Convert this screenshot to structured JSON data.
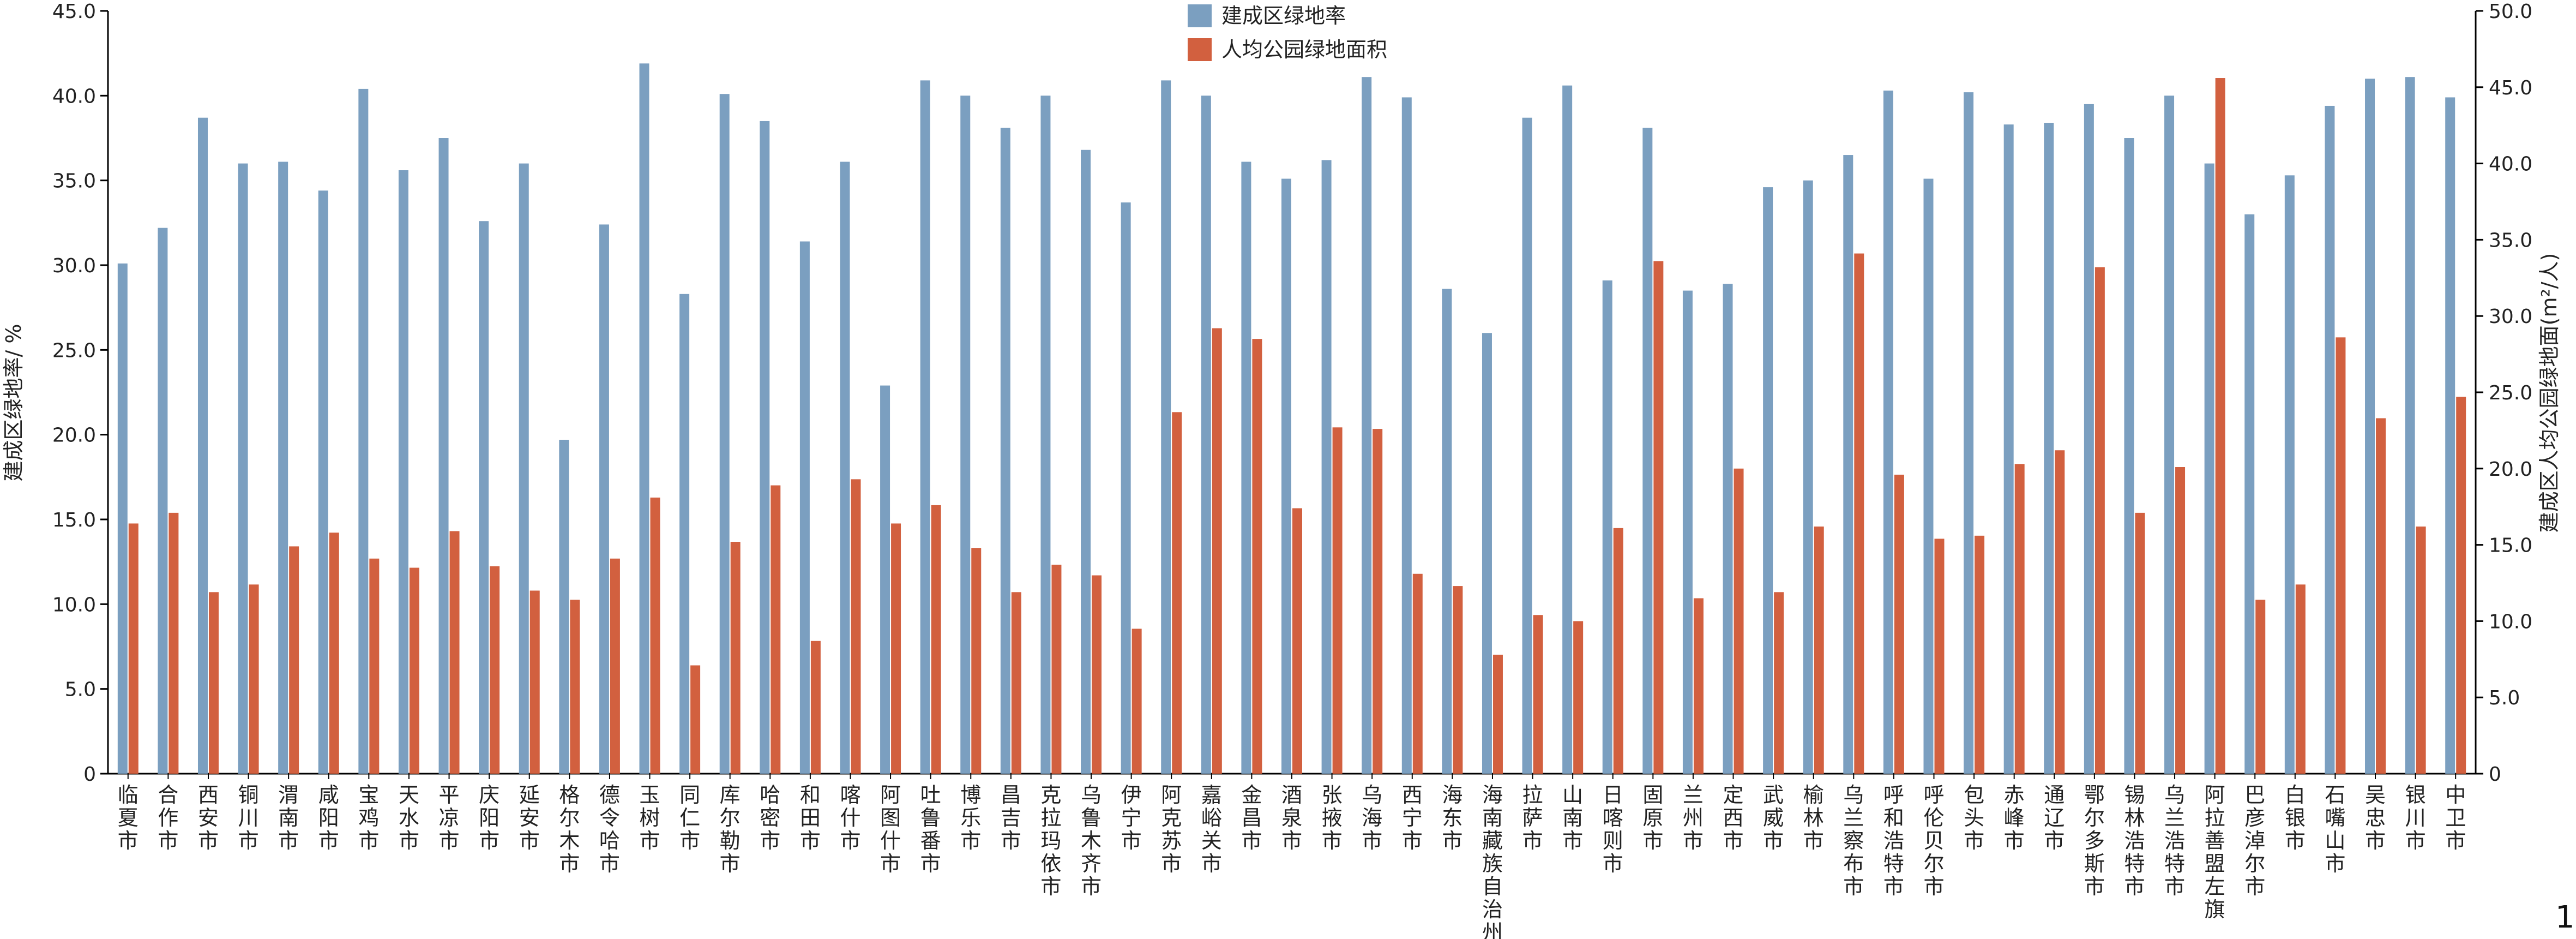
{
  "page_number": "1",
  "chart_data": {
    "type": "bar",
    "categories": [
      "临夏市",
      "合作市",
      "西安市",
      "铜川市",
      "渭南市",
      "咸阳市",
      "宝鸡市",
      "天水市",
      "平凉市",
      "庆阳市",
      "延安市",
      "格尔木市",
      "德令哈市",
      "玉树市",
      "同仁市",
      "库尔勒市",
      "哈密市",
      "和田市",
      "喀什市",
      "阿图什市",
      "吐鲁番市",
      "博乐市",
      "昌吉市",
      "克拉玛依市",
      "乌鲁木齐市",
      "伊宁市",
      "阿克苏市",
      "嘉峪关市",
      "金昌市",
      "酒泉市",
      "张掖市",
      "乌海市",
      "西宁市",
      "海东市",
      "海南藏族自治州",
      "拉萨市",
      "山南市",
      "日喀则市",
      "固原市",
      "兰州市",
      "定西市",
      "武威市",
      "榆林市",
      "乌兰察布市",
      "呼和浩特市",
      "呼伦贝尔市",
      "包头市",
      "赤峰市",
      "通辽市",
      "鄂尔多斯市",
      "锡林浩特市",
      "乌兰浩特市",
      "阿拉善盟左旗",
      "巴彦淖尔市",
      "白银市",
      "石嘴山市",
      "吴忠市",
      "银川市",
      "中卫市"
    ],
    "series": [
      {
        "name": "建成区绿地率",
        "axis": "left",
        "color": "#7b9fc0",
        "values": [
          30.1,
          32.2,
          38.7,
          36.0,
          36.1,
          34.4,
          40.4,
          35.6,
          37.5,
          32.6,
          36.0,
          19.7,
          32.4,
          41.9,
          28.3,
          40.1,
          38.5,
          31.4,
          36.1,
          22.9,
          40.9,
          40.0,
          38.1,
          40.0,
          36.8,
          33.7,
          40.9,
          40.0,
          36.1,
          35.1,
          36.2,
          41.1,
          39.9,
          28.6,
          26.0,
          38.7,
          40.6,
          29.1,
          38.1,
          28.5,
          28.9,
          34.6,
          35.0,
          36.5,
          40.3,
          35.1,
          40.2,
          38.3,
          38.4,
          39.5,
          37.5,
          40.0,
          36.0,
          33.0,
          35.3,
          39.4,
          41.0,
          41.1,
          39.9
        ]
      },
      {
        "name": "人均公园绿地面积",
        "axis": "right",
        "color": "#d2603f",
        "values": [
          16.4,
          17.1,
          11.9,
          12.4,
          14.9,
          15.8,
          14.1,
          13.5,
          15.9,
          13.6,
          12.0,
          11.4,
          14.1,
          18.1,
          7.1,
          15.2,
          18.9,
          8.7,
          19.3,
          16.4,
          17.6,
          14.8,
          11.9,
          13.7,
          13.0,
          9.5,
          23.7,
          29.2,
          28.5,
          17.4,
          22.7,
          22.6,
          13.1,
          12.3,
          7.8,
          10.4,
          10.0,
          16.1,
          33.6,
          11.5,
          20.0,
          11.9,
          16.2,
          34.1,
          19.6,
          15.4,
          15.6,
          20.3,
          21.2,
          33.2,
          17.1,
          20.1,
          45.6,
          11.4,
          12.4,
          28.6,
          23.3,
          16.2,
          24.7
        ]
      }
    ],
    "ylabel": "建成区绿地率/ %",
    "y2label": "建成区人均公园绿地面",
    "y2label_unit": "(m²/人)",
    "ylim": [
      0,
      45
    ],
    "y2lim": [
      0,
      50
    ],
    "yticks": [
      "0",
      "5.0",
      "10.0",
      "15.0",
      "20.0",
      "25.0",
      "30.0",
      "35.0",
      "40.0",
      "45.0"
    ],
    "y2ticks": [
      "0",
      "5.0",
      "10.0",
      "15.0",
      "20.0",
      "25.0",
      "30.0",
      "35.0",
      "40.0",
      "45.0",
      "50.0"
    ],
    "legend": [
      "建成区绿地率",
      "人均公园绿地面积"
    ],
    "legend_position": "top-center",
    "grid": false
  }
}
